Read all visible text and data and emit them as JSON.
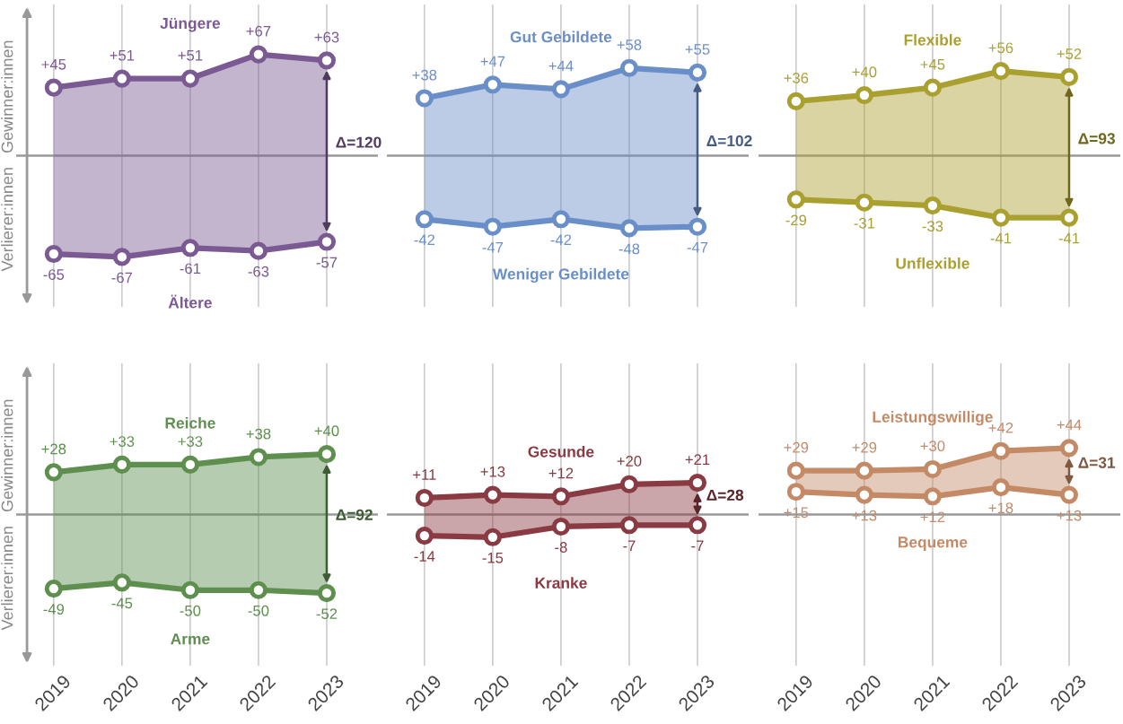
{
  "chart_data": [
    {
      "type": "line",
      "categories": [
        "2019",
        "2020",
        "2021",
        "2022",
        "2023"
      ],
      "ylabel": "Verlierer:innen   Gewinner:innen",
      "ylim": [
        -100,
        100
      ],
      "grid": "x",
      "marker": "circle",
      "tick_labels": false,
      "ref_lines": [
        {
          "axis": "y",
          "value": 0,
          "color": "#999999"
        }
      ],
      "annotations": [
        "Δ=120"
      ],
      "series": [
        {
          "name": "Jüngere",
          "color": "#7b5a93",
          "values": [
            45,
            51,
            51,
            67,
            63
          ],
          "value_labels": [
            "+45",
            "+51",
            "+51",
            "+67",
            "+63"
          ],
          "lower": [
            -65,
            -67,
            -61,
            -63,
            -57
          ],
          "upper": [
            45,
            51,
            51,
            67,
            63
          ]
        },
        {
          "name": "Ältere",
          "color": "#7b5a93",
          "values": [
            -65,
            -67,
            -61,
            -63,
            -57
          ],
          "value_labels": [
            "-65",
            "-67",
            "-61",
            "-63",
            "-57"
          ]
        }
      ]
    },
    {
      "type": "line",
      "categories": [
        "2019",
        "2020",
        "2021",
        "2022",
        "2023"
      ],
      "ylim": [
        -100,
        100
      ],
      "grid": "x",
      "marker": "circle",
      "tick_labels": false,
      "ref_lines": [
        {
          "axis": "y",
          "value": 0,
          "color": "#999999"
        }
      ],
      "annotations": [
        "Δ=102"
      ],
      "series": [
        {
          "name": "Gut Gebildete",
          "color": "#6a8fc8",
          "values": [
            38,
            47,
            44,
            58,
            55
          ],
          "value_labels": [
            "+38",
            "+47",
            "+44",
            "+58",
            "+55"
          ],
          "lower": [
            -42,
            -47,
            -42,
            -48,
            -47
          ],
          "upper": [
            38,
            47,
            44,
            58,
            55
          ]
        },
        {
          "name": "Weniger Gebildete",
          "color": "#6a8fc8",
          "values": [
            -42,
            -47,
            -42,
            -48,
            -47
          ],
          "value_labels": [
            "-42",
            "-47",
            "-42",
            "-48",
            "-47"
          ]
        }
      ]
    },
    {
      "type": "line",
      "categories": [
        "2019",
        "2020",
        "2021",
        "2022",
        "2023"
      ],
      "ylim": [
        -100,
        100
      ],
      "grid": "x",
      "marker": "circle",
      "tick_labels": false,
      "ref_lines": [
        {
          "axis": "y",
          "value": 0,
          "color": "#999999"
        }
      ],
      "annotations": [
        "Δ=93"
      ],
      "series": [
        {
          "name": "Flexible",
          "color": "#aaa030",
          "values": [
            36,
            40,
            45,
            56,
            52
          ],
          "value_labels": [
            "+36",
            "+40",
            "+45",
            "+56",
            "+52"
          ],
          "lower": [
            -29,
            -31,
            -33,
            -41,
            -41
          ],
          "upper": [
            36,
            40,
            45,
            56,
            52
          ]
        },
        {
          "name": "Unflexible",
          "color": "#aaa030",
          "values": [
            -29,
            -31,
            -33,
            -41,
            -41
          ],
          "value_labels": [
            "-29",
            "-31",
            "-33",
            "-41",
            "-41"
          ]
        }
      ]
    },
    {
      "type": "line",
      "categories": [
        "2019",
        "2020",
        "2021",
        "2022",
        "2023"
      ],
      "ylabel": "Verlierer:innen   Gewinner:innen",
      "ylim": [
        -100,
        100
      ],
      "grid": "x",
      "marker": "circle",
      "tick_labels": "x",
      "ref_lines": [
        {
          "axis": "y",
          "value": 0,
          "color": "#999999"
        }
      ],
      "annotations": [
        "Δ=92"
      ],
      "series": [
        {
          "name": "Reiche",
          "color": "#5e8f4f",
          "values": [
            28,
            33,
            33,
            38,
            40
          ],
          "value_labels": [
            "+28",
            "+33",
            "+33",
            "+38",
            "+40"
          ],
          "lower": [
            -49,
            -45,
            -50,
            -50,
            -52
          ],
          "upper": [
            28,
            33,
            33,
            38,
            40
          ]
        },
        {
          "name": "Arme",
          "color": "#5e8f4f",
          "values": [
            -49,
            -45,
            -50,
            -50,
            -52
          ],
          "value_labels": [
            "-49",
            "-45",
            "-50",
            "-50",
            "-52"
          ]
        }
      ]
    },
    {
      "type": "line",
      "categories": [
        "2019",
        "2020",
        "2021",
        "2022",
        "2023"
      ],
      "ylim": [
        -100,
        100
      ],
      "grid": "x",
      "marker": "circle",
      "tick_labels": "x",
      "ref_lines": [
        {
          "axis": "y",
          "value": 0,
          "color": "#999999"
        }
      ],
      "annotations": [
        "Δ=28"
      ],
      "series": [
        {
          "name": "Gesunde",
          "color": "#8a3a42",
          "values": [
            11,
            13,
            12,
            20,
            21
          ],
          "value_labels": [
            "+11",
            "+13",
            "+12",
            "+20",
            "+21"
          ],
          "lower": [
            -14,
            -15,
            -8,
            -7,
            -7
          ],
          "upper": [
            11,
            13,
            12,
            20,
            21
          ]
        },
        {
          "name": "Kranke",
          "color": "#8a3a42",
          "values": [
            -14,
            -15,
            -8,
            -7,
            -7
          ],
          "value_labels": [
            "-14",
            "-15",
            "-8",
            "-7",
            "-7"
          ]
        }
      ]
    },
    {
      "type": "line",
      "categories": [
        "2019",
        "2020",
        "2021",
        "2022",
        "2023"
      ],
      "ylim": [
        -100,
        100
      ],
      "grid": "x",
      "marker": "circle",
      "tick_labels": "x",
      "ref_lines": [
        {
          "axis": "y",
          "value": 0,
          "color": "#999999"
        }
      ],
      "annotations": [
        "Δ=31"
      ],
      "series": [
        {
          "name": "Leistungswillige",
          "color": "#c48a66",
          "values": [
            29,
            29,
            30,
            42,
            44
          ],
          "value_labels": [
            "+29",
            "+29",
            "+30",
            "+42",
            "+44"
          ],
          "lower": [
            15,
            13,
            12,
            18,
            13
          ],
          "upper": [
            29,
            29,
            30,
            42,
            44
          ]
        },
        {
          "name": "Bequeme",
          "color": "#c48a66",
          "values": [
            15,
            13,
            12,
            18,
            13
          ],
          "value_labels": [
            "+15",
            "+13",
            "+12",
            "+18",
            "+13"
          ]
        }
      ]
    }
  ]
}
